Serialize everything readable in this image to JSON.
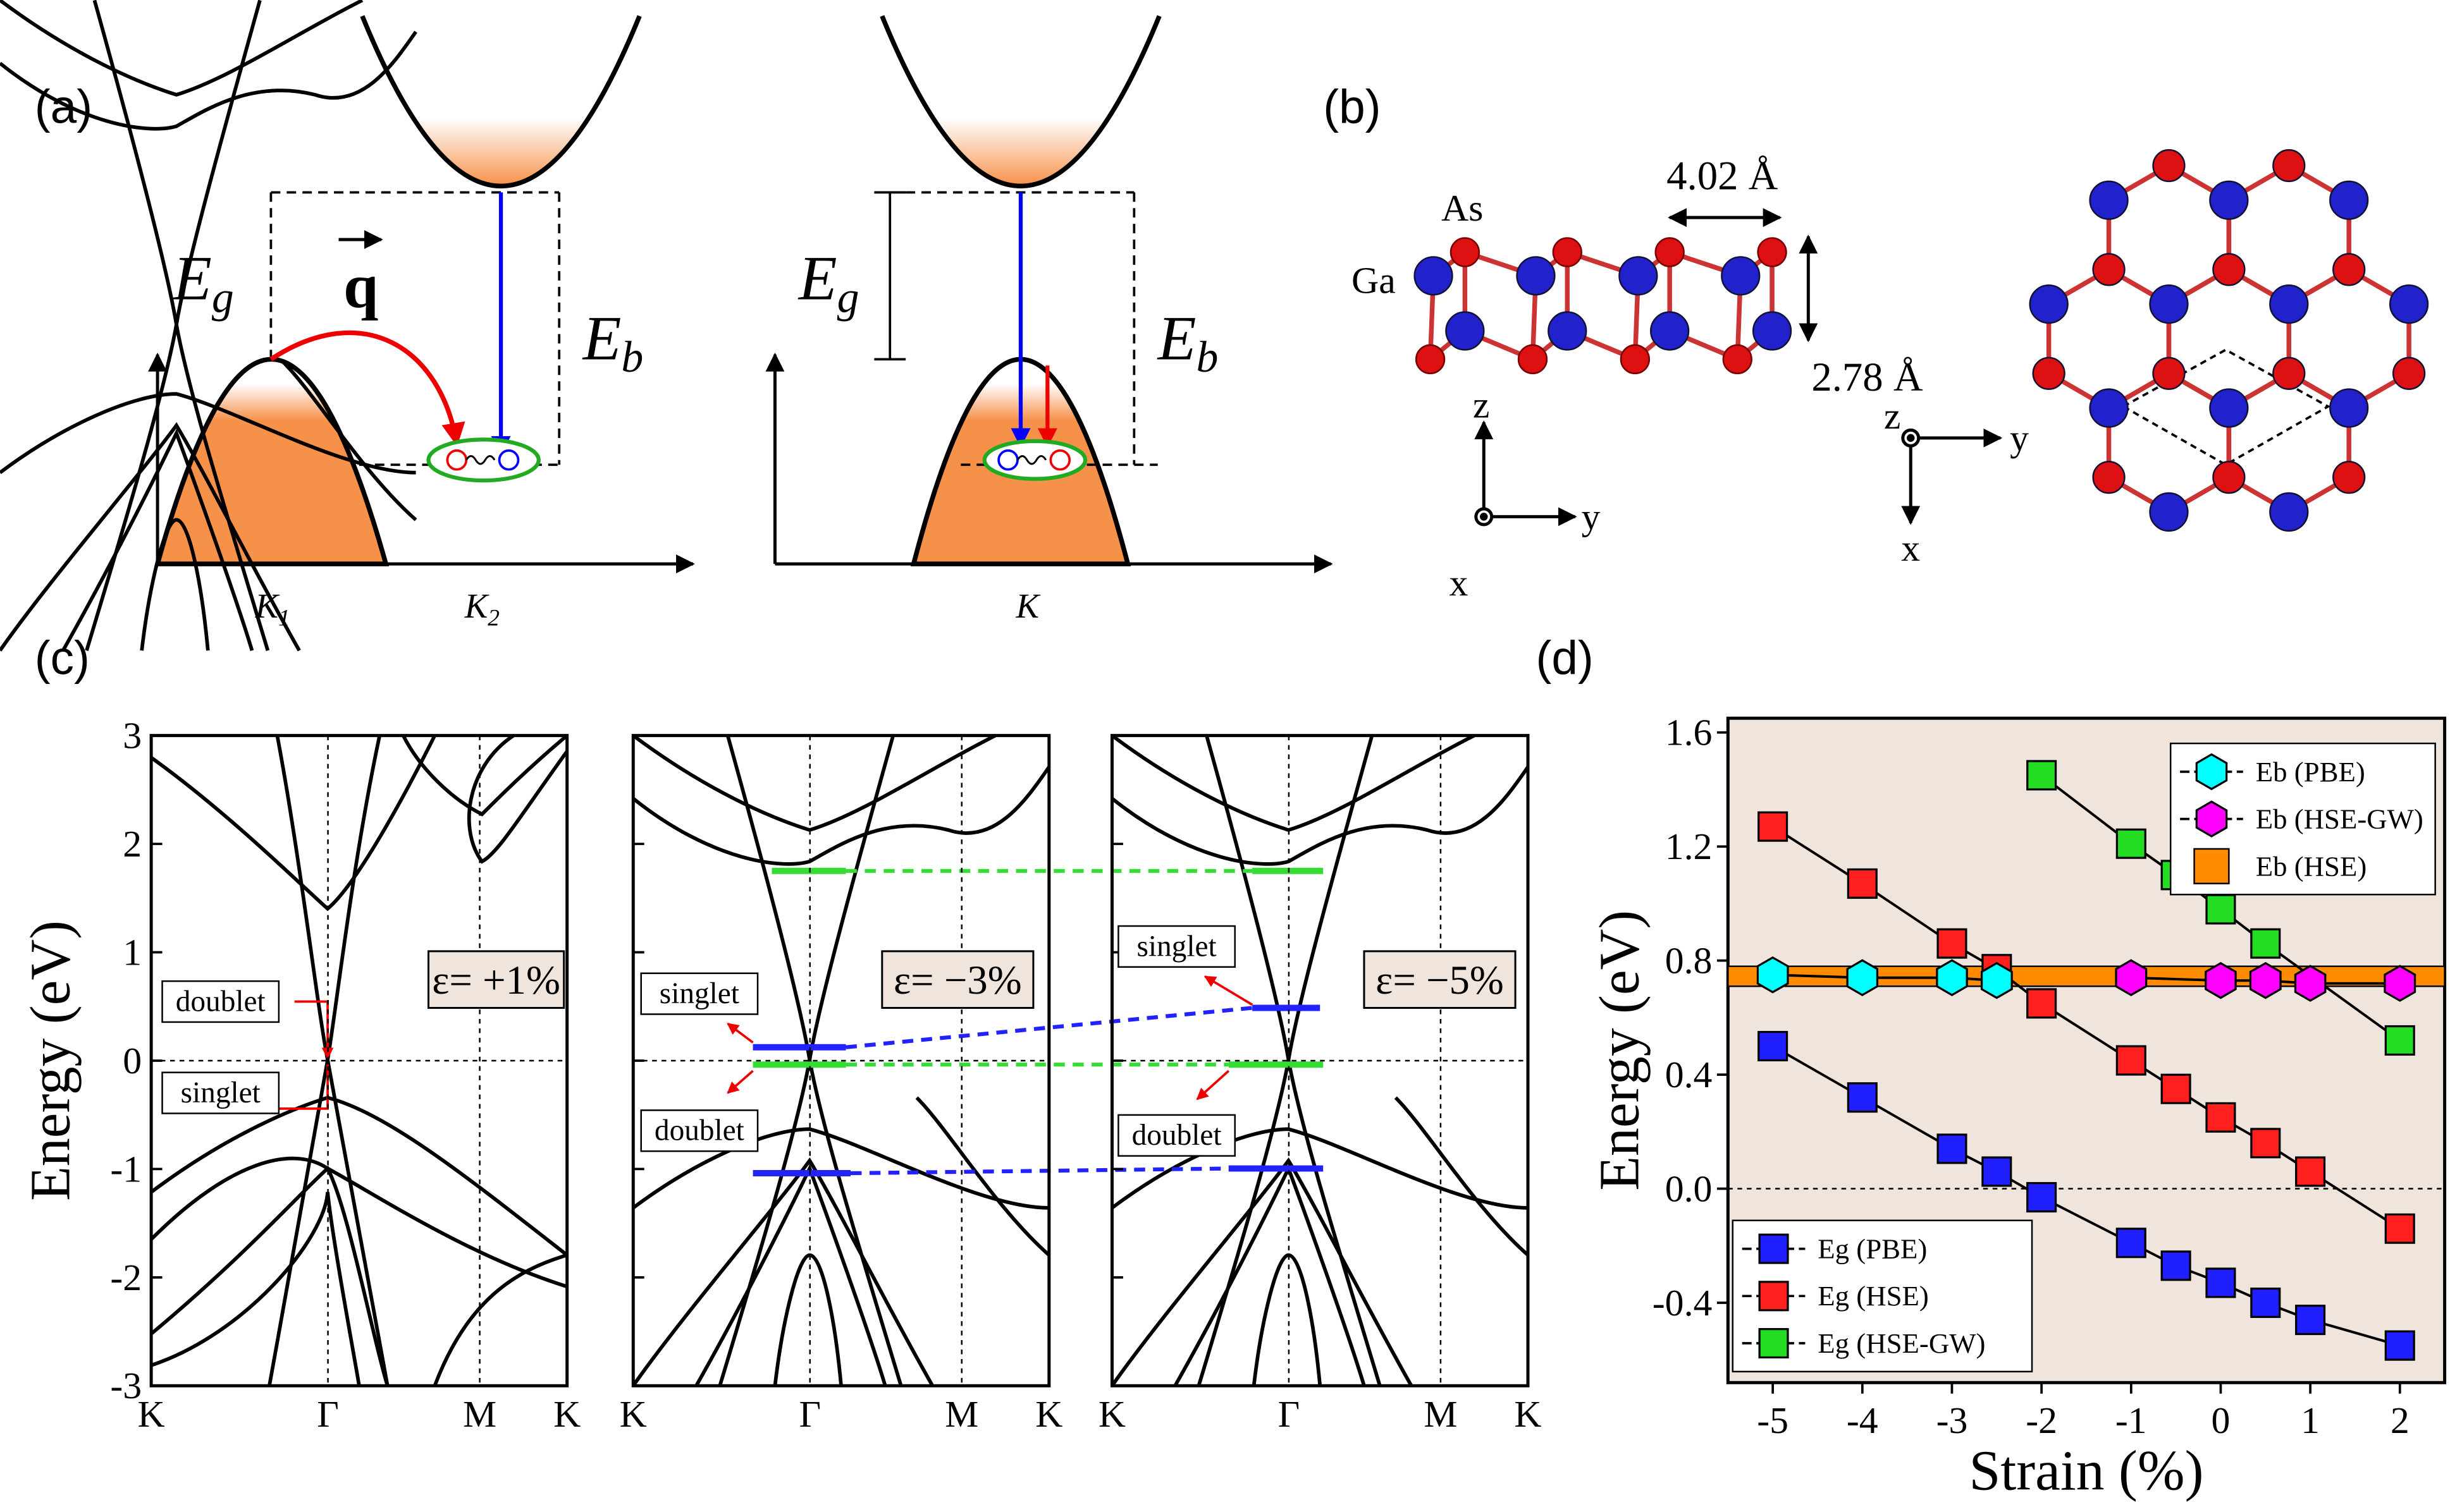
{
  "labels": {
    "a": "(a)",
    "b": "(b)",
    "c": "(c)",
    "d": "(d)"
  },
  "panel_a": {
    "left": {
      "gap": {
        "symbol": "E",
        "subscript": "g"
      },
      "momentum": "q",
      "binding": {
        "symbol": "E",
        "subscript": "b"
      },
      "k1": {
        "symbol": "K",
        "subscript": "1"
      },
      "k2": {
        "symbol": "K",
        "subscript": "2"
      }
    },
    "right": {
      "gap": {
        "symbol": "E",
        "subscript": "g"
      },
      "binding": {
        "symbol": "E",
        "subscript": "b"
      },
      "k": "K"
    }
  },
  "panel_b": {
    "as": "As",
    "ga": "Ga",
    "lattice": "4.02 Å",
    "thickness": "2.78 Å",
    "side_axes": {
      "z": "z",
      "y": "y",
      "x": "x"
    },
    "top_axes": {
      "z": "z",
      "y": "y",
      "x": "x"
    }
  },
  "chart_data": [
    {
      "type": "band-structure",
      "ylabel": "Energy (eV)",
      "ylim": [
        -3,
        3
      ],
      "yticks": [
        -3,
        -2,
        -1,
        0,
        1,
        2,
        3
      ],
      "show_ytick_labels": true,
      "kpoints": [
        "K",
        "Γ",
        "M",
        "K"
      ],
      "annotation": "ε= +1%",
      "labels": [
        "doublet",
        "singlet"
      ]
    },
    {
      "type": "band-structure",
      "ylim": [
        -3,
        3
      ],
      "yticks": [
        -3,
        -2,
        -1,
        0,
        1,
        2,
        3
      ],
      "show_ytick_labels": false,
      "kpoints": [
        "K",
        "Γ",
        "M",
        "K"
      ],
      "annotation": "ε= −3%",
      "labels": [
        "singlet",
        "doublet"
      ]
    },
    {
      "type": "band-structure",
      "ylim": [
        -3,
        3
      ],
      "yticks": [
        -3,
        -2,
        -1,
        0,
        1,
        2,
        3
      ],
      "show_ytick_labels": false,
      "kpoints": [
        "K",
        "Γ",
        "M",
        "K"
      ],
      "annotation": "ε= −5%",
      "labels": [
        "singlet",
        "doublet"
      ]
    },
    {
      "type": "line",
      "xlabel": "Strain (%)",
      "ylabel": "Energy (eV)",
      "xlim": [
        -5.5,
        2.5
      ],
      "xticks": [
        -5,
        -4,
        -3,
        -2,
        -1,
        0,
        1,
        2
      ],
      "ylim": [
        -0.68,
        1.65
      ],
      "yticks": [
        -0.4,
        {
          "value": 0,
          "label": "0.0"
        },
        0.4,
        0.8,
        1.2,
        1.6
      ],
      "hline": 0,
      "background": "#efe5dd",
      "series": [
        {
          "name": "Eg (PBE)",
          "color": "#1f1fff",
          "marker": "square",
          "legend": "lower left",
          "x": [
            -5,
            -4,
            -3,
            -2.5,
            -2,
            -1,
            -0.5,
            0,
            0.5,
            1,
            2
          ],
          "values": [
            0.5,
            0.32,
            0.14,
            0.06,
            -0.03,
            -0.19,
            -0.27,
            -0.33,
            -0.4,
            -0.46,
            -0.55
          ]
        },
        {
          "name": "Eg (HSE)",
          "color": "#ff1f1f",
          "marker": "square",
          "legend": "lower left",
          "x": [
            -5,
            -4,
            -3,
            -2.5,
            -2,
            -1,
            -0.5,
            0,
            0.5,
            1,
            2
          ],
          "values": [
            1.27,
            1.07,
            0.86,
            0.77,
            0.65,
            0.45,
            0.35,
            0.25,
            0.16,
            0.06,
            -0.14
          ]
        },
        {
          "name": "Eg (HSE-GW)",
          "color": "#22dd22",
          "marker": "square",
          "legend": "lower left",
          "x": [
            -2,
            -1,
            -0.5,
            0,
            0.5,
            2
          ],
          "values": [
            1.45,
            1.21,
            1.1,
            0.98,
            0.86,
            0.52
          ]
        },
        {
          "name": "Eb (PBE)",
          "color": "#00ffff",
          "marker": "hexagon",
          "legend": "upper right",
          "x": [
            -5,
            -4,
            -3,
            -2.5
          ],
          "values": [
            0.75,
            0.74,
            0.74,
            0.73
          ]
        },
        {
          "name": "Eb (HSE-GW)",
          "color": "#ff00ff",
          "marker": "hexagon",
          "legend": "upper right",
          "x": [
            -1,
            0,
            0.5,
            1,
            2
          ],
          "values": [
            0.74,
            0.73,
            0.73,
            0.72,
            0.72
          ]
        },
        {
          "name": "Eb (HSE)",
          "color": "#ff8c00",
          "marker": "band",
          "legend": "upper right",
          "x": [
            -5.5,
            2.5
          ],
          "lower": [
            0.71,
            0.71
          ],
          "upper": [
            0.78,
            0.78
          ]
        }
      ]
    }
  ]
}
